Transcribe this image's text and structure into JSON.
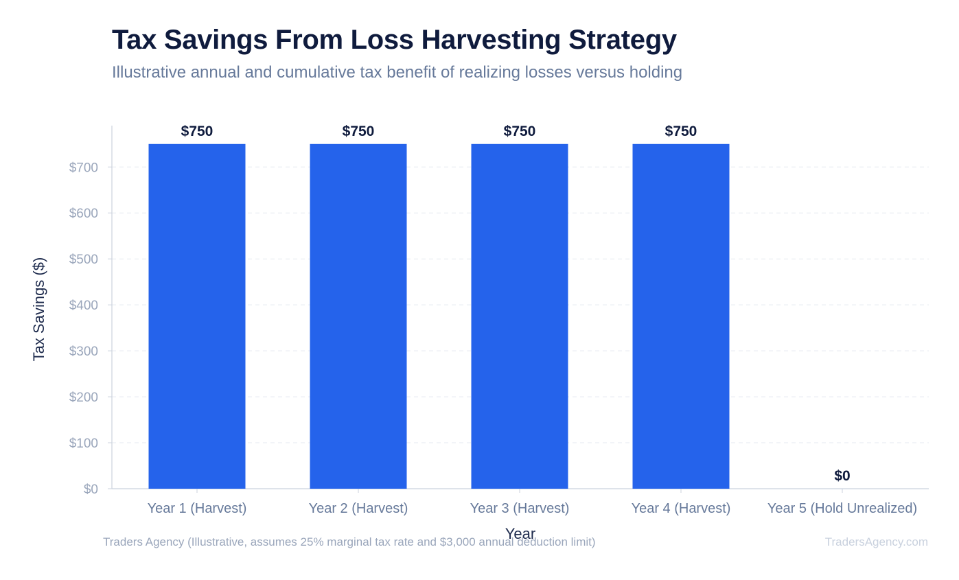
{
  "chart_data": {
    "type": "bar",
    "title": "Tax Savings From Loss Harvesting Strategy",
    "subtitle": "Illustrative annual and cumulative tax benefit of realizing losses versus holding",
    "xlabel": "Year",
    "ylabel": "Tax Savings ($)",
    "categories": [
      "Year 1 (Harvest)",
      "Year 2 (Harvest)",
      "Year 3 (Harvest)",
      "Year 4 (Harvest)",
      "Year 5 (Hold Unrealized)"
    ],
    "values": [
      750,
      750,
      750,
      750,
      0
    ],
    "data_labels": [
      "$750",
      "$750",
      "$750",
      "$750",
      "$0"
    ],
    "ylim": [
      0,
      790
    ],
    "yticks": [
      0,
      100,
      200,
      300,
      400,
      500,
      600,
      700
    ],
    "ytick_labels": [
      "$0",
      "$100",
      "$200",
      "$300",
      "$400",
      "$500",
      "$600",
      "$700"
    ],
    "grid": "horizontal dashed",
    "legend": "none",
    "colors": {
      "bar": "#2563eb",
      "grid": "#e5e9f0",
      "axis": "#cbd2dd"
    }
  },
  "footer": {
    "source": "Traders Agency (Illustrative, assumes 25% marginal tax rate and $3,000 annual deduction limit)",
    "watermark": "TradersAgency.com"
  }
}
